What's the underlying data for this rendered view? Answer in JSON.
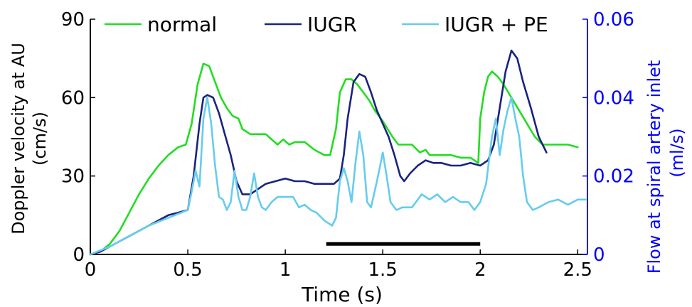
{
  "chart_data": {
    "type": "line",
    "xlabel": "Time (s)",
    "ylabel_left": [
      "Doppler velocity at AU",
      "(cm/s)"
    ],
    "ylabel_right": [
      "Flow at spiral artery inlet",
      "(ml/s)"
    ],
    "xlim": [
      0,
      2.55
    ],
    "ylim_left": [
      0,
      90
    ],
    "ylim_right": [
      0,
      0.06
    ],
    "xticks": [
      {
        "value": 0,
        "label": "0"
      },
      {
        "value": 0.5,
        "label": "0.5"
      },
      {
        "value": 1,
        "label": "1"
      },
      {
        "value": 1.5,
        "label": "1.5"
      },
      {
        "value": 2,
        "label": "2"
      },
      {
        "value": 2.5,
        "label": "2.5"
      }
    ],
    "yticks_left": [
      {
        "value": 0,
        "label": "0"
      },
      {
        "value": 30,
        "label": "30"
      },
      {
        "value": 60,
        "label": "60"
      },
      {
        "value": 90,
        "label": "90"
      }
    ],
    "yticks_right": [
      {
        "value": 0,
        "label": "0"
      },
      {
        "value": 0.02,
        "label": "0.02"
      },
      {
        "value": 0.04,
        "label": "0.04"
      },
      {
        "value": 0.06,
        "label": "0.06"
      }
    ],
    "right_axis_color": "#0000ff",
    "grid": false,
    "legend_placement": "top",
    "series": [
      {
        "name": "normal",
        "color": "#22dd22",
        "points": [
          [
            0,
            0
          ],
          [
            0.05,
            1
          ],
          [
            0.1,
            4
          ],
          [
            0.15,
            9
          ],
          [
            0.2,
            16
          ],
          [
            0.25,
            23
          ],
          [
            0.3,
            29
          ],
          [
            0.35,
            34
          ],
          [
            0.4,
            38
          ],
          [
            0.45,
            41
          ],
          [
            0.49,
            42
          ],
          [
            0.52,
            50
          ],
          [
            0.55,
            65
          ],
          [
            0.58,
            73
          ],
          [
            0.61,
            72
          ],
          [
            0.64,
            66
          ],
          [
            0.67,
            60
          ],
          [
            0.7,
            56
          ],
          [
            0.73,
            53
          ],
          [
            0.76,
            52
          ],
          [
            0.78,
            48
          ],
          [
            0.82,
            46
          ],
          [
            0.9,
            46
          ],
          [
            0.93,
            44
          ],
          [
            0.96,
            42
          ],
          [
            0.99,
            44
          ],
          [
            1.02,
            42
          ],
          [
            1.05,
            43
          ],
          [
            1.1,
            43
          ],
          [
            1.15,
            40
          ],
          [
            1.2,
            38
          ],
          [
            1.23,
            38
          ],
          [
            1.26,
            48
          ],
          [
            1.28,
            62
          ],
          [
            1.31,
            67
          ],
          [
            1.34,
            67
          ],
          [
            1.37,
            65
          ],
          [
            1.4,
            62
          ],
          [
            1.43,
            59
          ],
          [
            1.46,
            55
          ],
          [
            1.5,
            51
          ],
          [
            1.55,
            45
          ],
          [
            1.58,
            42
          ],
          [
            1.65,
            42
          ],
          [
            1.69,
            39
          ],
          [
            1.72,
            40
          ],
          [
            1.74,
            38
          ],
          [
            1.8,
            38
          ],
          [
            1.85,
            38
          ],
          [
            1.9,
            37
          ],
          [
            1.95,
            37
          ],
          [
            1.99,
            35
          ],
          [
            2.0,
            52
          ],
          [
            2.02,
            62
          ],
          [
            2.04,
            68
          ],
          [
            2.06,
            70
          ],
          [
            2.09,
            68
          ],
          [
            2.12,
            65
          ],
          [
            2.16,
            60
          ],
          [
            2.2,
            55
          ],
          [
            2.24,
            50
          ],
          [
            2.28,
            45
          ],
          [
            2.32,
            42
          ],
          [
            2.4,
            42
          ],
          [
            2.45,
            42
          ],
          [
            2.5,
            41
          ]
        ]
      },
      {
        "name": "IUGR",
        "color": "#1a237e",
        "points": [
          [
            0,
            0
          ],
          [
            0.05,
            1
          ],
          [
            0.1,
            3
          ],
          [
            0.15,
            5
          ],
          [
            0.2,
            7
          ],
          [
            0.25,
            9
          ],
          [
            0.3,
            11
          ],
          [
            0.35,
            13
          ],
          [
            0.4,
            15
          ],
          [
            0.45,
            16
          ],
          [
            0.5,
            17
          ],
          [
            0.53,
            30
          ],
          [
            0.56,
            50
          ],
          [
            0.58,
            60
          ],
          [
            0.6,
            61
          ],
          [
            0.63,
            60
          ],
          [
            0.66,
            54
          ],
          [
            0.69,
            46
          ],
          [
            0.72,
            38
          ],
          [
            0.75,
            28
          ],
          [
            0.78,
            23
          ],
          [
            0.82,
            23
          ],
          [
            0.86,
            25
          ],
          [
            0.9,
            27
          ],
          [
            0.95,
            28
          ],
          [
            1.0,
            29
          ],
          [
            1.05,
            28
          ],
          [
            1.1,
            28
          ],
          [
            1.15,
            27
          ],
          [
            1.2,
            27
          ],
          [
            1.25,
            27
          ],
          [
            1.28,
            29
          ],
          [
            1.3,
            38
          ],
          [
            1.32,
            52
          ],
          [
            1.35,
            66
          ],
          [
            1.38,
            69
          ],
          [
            1.41,
            68
          ],
          [
            1.44,
            62
          ],
          [
            1.47,
            55
          ],
          [
            1.5,
            50
          ],
          [
            1.53,
            45
          ],
          [
            1.56,
            38
          ],
          [
            1.59,
            30
          ],
          [
            1.61,
            28
          ],
          [
            1.64,
            31
          ],
          [
            1.68,
            34
          ],
          [
            1.72,
            36
          ],
          [
            1.76,
            35
          ],
          [
            1.8,
            35
          ],
          [
            1.85,
            34
          ],
          [
            1.9,
            34
          ],
          [
            1.95,
            35
          ],
          [
            2.0,
            34
          ],
          [
            2.04,
            36
          ],
          [
            2.07,
            42
          ],
          [
            2.1,
            56
          ],
          [
            2.13,
            70
          ],
          [
            2.16,
            78
          ],
          [
            2.19,
            75
          ],
          [
            2.22,
            66
          ],
          [
            2.26,
            56
          ],
          [
            2.3,
            45
          ],
          [
            2.34,
            39
          ]
        ]
      },
      {
        "name": "IUGR + PE",
        "color": "#66ccee",
        "points": [
          [
            0,
            0
          ],
          [
            0.1,
            3
          ],
          [
            0.2,
            7
          ],
          [
            0.3,
            11
          ],
          [
            0.4,
            14
          ],
          [
            0.5,
            17
          ],
          [
            0.52,
            24
          ],
          [
            0.54,
            32
          ],
          [
            0.56,
            26
          ],
          [
            0.58,
            52
          ],
          [
            0.6,
            60
          ],
          [
            0.62,
            50
          ],
          [
            0.64,
            34
          ],
          [
            0.66,
            22
          ],
          [
            0.68,
            21
          ],
          [
            0.7,
            17
          ],
          [
            0.72,
            20
          ],
          [
            0.74,
            32
          ],
          [
            0.76,
            22
          ],
          [
            0.78,
            17
          ],
          [
            0.8,
            17
          ],
          [
            0.82,
            22
          ],
          [
            0.84,
            31
          ],
          [
            0.86,
            22
          ],
          [
            0.88,
            18
          ],
          [
            0.9,
            17
          ],
          [
            0.93,
            20
          ],
          [
            0.96,
            22
          ],
          [
            1.0,
            22
          ],
          [
            1.04,
            22
          ],
          [
            1.07,
            18
          ],
          [
            1.1,
            19
          ],
          [
            1.13,
            17
          ],
          [
            1.16,
            16
          ],
          [
            1.2,
            13
          ],
          [
            1.24,
            11
          ],
          [
            1.26,
            14
          ],
          [
            1.28,
            28
          ],
          [
            1.3,
            33
          ],
          [
            1.32,
            28
          ],
          [
            1.34,
            20
          ],
          [
            1.36,
            35
          ],
          [
            1.38,
            47
          ],
          [
            1.4,
            38
          ],
          [
            1.42,
            20
          ],
          [
            1.44,
            18
          ],
          [
            1.47,
            28
          ],
          [
            1.5,
            39
          ],
          [
            1.52,
            30
          ],
          [
            1.54,
            20
          ],
          [
            1.57,
            17
          ],
          [
            1.6,
            18
          ],
          [
            1.65,
            18
          ],
          [
            1.7,
            23
          ],
          [
            1.74,
            21
          ],
          [
            1.78,
            23
          ],
          [
            1.82,
            20
          ],
          [
            1.86,
            22
          ],
          [
            1.9,
            20
          ],
          [
            1.94,
            20
          ],
          [
            1.97,
            17
          ],
          [
            2.0,
            20
          ],
          [
            2.03,
            27
          ],
          [
            2.06,
            45
          ],
          [
            2.08,
            52
          ],
          [
            2.1,
            38
          ],
          [
            2.12,
            48
          ],
          [
            2.14,
            55
          ],
          [
            2.16,
            60
          ],
          [
            2.18,
            52
          ],
          [
            2.2,
            45
          ],
          [
            2.22,
            30
          ],
          [
            2.24,
            20
          ],
          [
            2.27,
            17
          ],
          [
            2.3,
            18
          ],
          [
            2.35,
            20
          ],
          [
            2.4,
            21
          ],
          [
            2.45,
            19
          ],
          [
            2.5,
            21
          ],
          [
            2.54,
            21
          ]
        ]
      }
    ],
    "bar": {
      "x_start": 1.21,
      "x_end": 2.0,
      "y": 4
    }
  }
}
